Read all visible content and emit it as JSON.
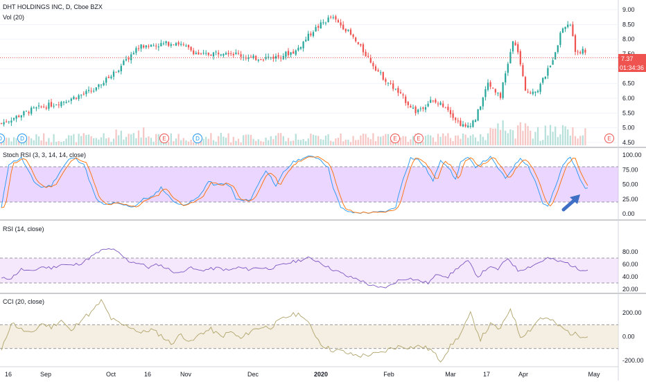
{
  "header": {
    "title": "DHT HOLDINGS INC, D, Cboe BZX",
    "volume_label": "Vol (20)"
  },
  "price_badge": {
    "value": "7.37",
    "countdown": "01:34:36"
  },
  "colors": {
    "up": "#26a69a",
    "down": "#ef5350",
    "vol_up": "#b7e0da",
    "vol_down": "#f6c6c4",
    "stoch_k": "#2196f3",
    "stoch_d": "#ff6d00",
    "stoch_band": "#e1bee7",
    "rsi_line": "#7e57c2",
    "rsi_band": "#f3e5f5",
    "cci_line": "#b0a36a",
    "cci_band": "#f3ede1",
    "arrow": "#3f6fc4",
    "event_dividend": "#2196f3",
    "event_earnings": "#ef5350"
  },
  "events": [
    {
      "type": "dividend",
      "label": "D"
    },
    {
      "type": "earnings",
      "label": "E"
    },
    {
      "type": "dividend",
      "label": "D"
    },
    {
      "type": "earnings",
      "label": "E"
    },
    {
      "type": "earnings",
      "label": "E"
    },
    {
      "type": "dividend",
      "label": "D"
    },
    {
      "type": "earnings",
      "label": "E"
    }
  ],
  "annotation": {
    "icon": "arrow-up-right-icon"
  },
  "x_axis": {
    "labels": [
      "16",
      "Sep",
      "Oct",
      "16",
      "Nov",
      "Dec",
      "2020",
      "Feb",
      "Mar",
      "17",
      "Apr",
      "May"
    ],
    "bold": [
      false,
      false,
      false,
      false,
      false,
      false,
      true,
      false,
      false,
      false,
      false,
      false
    ]
  },
  "chart_data": [
    {
      "type": "candlestick",
      "title": "DHT HOLDINGS INC, D, Cboe BZX",
      "price_axis_ticks": [
        "9.00",
        "8.50",
        "8.00",
        "7.50",
        "7.00",
        "6.50",
        "6.00",
        "5.50",
        "5.00",
        "4.50"
      ],
      "ylim": [
        4.4,
        9.2
      ],
      "last_price": 7.37,
      "close_anchors": [
        [
          0,
          5.15
        ],
        [
          12,
          5.6
        ],
        [
          25,
          5.9
        ],
        [
          38,
          6.3
        ],
        [
          48,
          7.1
        ],
        [
          55,
          7.75
        ],
        [
          62,
          7.8
        ],
        [
          70,
          7.9
        ],
        [
          80,
          7.45
        ],
        [
          90,
          7.6
        ],
        [
          100,
          7.35
        ],
        [
          110,
          7.4
        ],
        [
          118,
          7.6
        ],
        [
          125,
          8.3
        ],
        [
          132,
          8.75
        ],
        [
          138,
          8.35
        ],
        [
          145,
          7.6
        ],
        [
          152,
          6.8
        ],
        [
          160,
          6.1
        ],
        [
          166,
          5.55
        ],
        [
          172,
          5.9
        ],
        [
          178,
          5.75
        ],
        [
          183,
          5.2
        ],
        [
          186,
          5.0
        ],
        [
          190,
          5.3
        ],
        [
          195,
          6.5
        ],
        [
          200,
          6.1
        ],
        [
          205,
          7.9
        ],
        [
          207,
          7.6
        ],
        [
          210,
          6.2
        ],
        [
          215,
          6.3
        ],
        [
          220,
          7.1
        ],
        [
          225,
          8.4
        ],
        [
          228,
          8.5
        ],
        [
          230,
          7.6
        ]
      ],
      "volume_label": "Vol (20)"
    },
    {
      "type": "line",
      "title": "Stoch RSI (3, 3, 14, 14, close)",
      "ticks": [
        "100.00",
        "75.00",
        "50.00",
        "25.00",
        "0.00"
      ],
      "ylim": [
        -5,
        108
      ],
      "band": [
        20,
        80
      ],
      "series": [
        {
          "name": "",
          "values_anchors": [
            [
              0,
              10
            ],
            [
              3,
              85
            ],
            [
              8,
              95
            ],
            [
              13,
              55
            ],
            [
              16,
              45
            ],
            [
              20,
              48
            ],
            [
              24,
              75
            ],
            [
              27,
              92
            ],
            [
              29,
              95
            ],
            [
              33,
              85
            ],
            [
              35,
              60
            ],
            [
              38,
              25
            ],
            [
              41,
              15
            ],
            [
              45,
              18
            ],
            [
              49,
              15
            ],
            [
              53,
              12
            ],
            [
              57,
              25
            ],
            [
              61,
              30
            ],
            [
              64,
              45
            ],
            [
              67,
              30
            ],
            [
              71,
              15
            ],
            [
              75,
              18
            ],
            [
              79,
              28
            ],
            [
              83,
              55
            ],
            [
              86,
              48
            ],
            [
              89,
              52
            ],
            [
              92,
              45
            ],
            [
              94,
              25
            ],
            [
              97,
              22
            ],
            [
              100,
              25
            ],
            [
              104,
              60
            ],
            [
              106,
              72
            ],
            [
              108,
              65
            ],
            [
              110,
              45
            ],
            [
              113,
              70
            ],
            [
              117,
              88
            ],
            [
              121,
              95
            ],
            [
              125,
              98
            ],
            [
              128,
              92
            ],
            [
              131,
              78
            ],
            [
              133,
              45
            ],
            [
              136,
              10
            ],
            [
              140,
              2
            ],
            [
              145,
              2
            ],
            [
              150,
              2
            ],
            [
              155,
              5
            ],
            [
              158,
              12
            ],
            [
              161,
              60
            ],
            [
              164,
              95
            ],
            [
              167,
              92
            ],
            [
              170,
              78
            ],
            [
              173,
              55
            ],
            [
              176,
              92
            ],
            [
              179,
              80
            ],
            [
              182,
              58
            ],
            [
              184,
              88
            ],
            [
              187,
              95
            ],
            [
              190,
              80
            ],
            [
              193,
              88
            ],
            [
              196,
              96
            ],
            [
              199,
              78
            ],
            [
              202,
              60
            ],
            [
              205,
              78
            ],
            [
              208,
              95
            ],
            [
              211,
              82
            ],
            [
              214,
              55
            ],
            [
              217,
              18
            ],
            [
              219,
              12
            ],
            [
              222,
              45
            ],
            [
              225,
              82
            ],
            [
              228,
              98
            ],
            [
              230,
              78
            ],
            [
              232,
              60
            ],
            [
              234,
              45
            ]
          ]
        }
      ],
      "annotation": "blue arrow pointing up-right"
    },
    {
      "type": "line",
      "title": "RSI (14, close)",
      "ticks": [
        "80.00",
        "60.00",
        "40.00",
        "20.00"
      ],
      "ylim": [
        17,
        88
      ],
      "band": [
        30,
        70
      ],
      "series": [
        {
          "name": "",
          "values_anchors": [
            [
              0,
              37
            ],
            [
              4,
              38
            ],
            [
              8,
              52
            ],
            [
              12,
              48
            ],
            [
              16,
              56
            ],
            [
              20,
              54
            ],
            [
              24,
              60
            ],
            [
              28,
              58
            ],
            [
              32,
              62
            ],
            [
              36,
              72
            ],
            [
              40,
              82
            ],
            [
              44,
              85
            ],
            [
              47,
              78
            ],
            [
              51,
              65
            ],
            [
              55,
              62
            ],
            [
              59,
              55
            ],
            [
              63,
              60
            ],
            [
              67,
              52
            ],
            [
              71,
              45
            ],
            [
              75,
              55
            ],
            [
              79,
              50
            ],
            [
              83,
              52
            ],
            [
              87,
              54
            ],
            [
              91,
              50
            ],
            [
              95,
              55
            ],
            [
              99,
              52
            ],
            [
              103,
              55
            ],
            [
              107,
              53
            ],
            [
              111,
              57
            ],
            [
              115,
              62
            ],
            [
              119,
              66
            ],
            [
              123,
              70
            ],
            [
              127,
              65
            ],
            [
              131,
              55
            ],
            [
              135,
              48
            ],
            [
              139,
              40
            ],
            [
              143,
              36
            ],
            [
              147,
              28
            ],
            [
              151,
              22
            ],
            [
              155,
              24
            ],
            [
              159,
              34
            ],
            [
              163,
              38
            ],
            [
              167,
              34
            ],
            [
              171,
              30
            ],
            [
              175,
              45
            ],
            [
              179,
              40
            ],
            [
              183,
              55
            ],
            [
              187,
              65
            ],
            [
              191,
              40
            ],
            [
              195,
              55
            ],
            [
              199,
              52
            ],
            [
              203,
              70
            ],
            [
              207,
              50
            ],
            [
              211,
              55
            ],
            [
              215,
              62
            ],
            [
              219,
              70
            ],
            [
              223,
              65
            ],
            [
              227,
              62
            ],
            [
              231,
              52
            ]
          ]
        }
      ]
    },
    {
      "type": "line",
      "title": "CCI (20, close)",
      "ticks": [
        "200.00",
        "0.00",
        "-200.00"
      ],
      "ylim": [
        -240,
        330
      ],
      "band": [
        -100,
        100
      ],
      "series": [
        {
          "name": "",
          "values_anchors": [
            [
              0,
              -120
            ],
            [
              4,
              120
            ],
            [
              8,
              60
            ],
            [
              12,
              20
            ],
            [
              16,
              110
            ],
            [
              20,
              80
            ],
            [
              24,
              140
            ],
            [
              28,
              40
            ],
            [
              32,
              150
            ],
            [
              36,
              200
            ],
            [
              40,
              300
            ],
            [
              44,
              150
            ],
            [
              48,
              100
            ],
            [
              52,
              80
            ],
            [
              56,
              30
            ],
            [
              60,
              60
            ],
            [
              64,
              10
            ],
            [
              68,
              -60
            ],
            [
              72,
              20
            ],
            [
              76,
              -50
            ],
            [
              80,
              30
            ],
            [
              84,
              60
            ],
            [
              88,
              0
            ],
            [
              92,
              40
            ],
            [
              96,
              -20
            ],
            [
              100,
              50
            ],
            [
              104,
              80
            ],
            [
              108,
              80
            ],
            [
              112,
              140
            ],
            [
              116,
              180
            ],
            [
              120,
              190
            ],
            [
              124,
              80
            ],
            [
              128,
              -60
            ],
            [
              132,
              -110
            ],
            [
              136,
              -120
            ],
            [
              140,
              -150
            ],
            [
              144,
              -160
            ],
            [
              148,
              -150
            ],
            [
              152,
              -140
            ],
            [
              156,
              -100
            ],
            [
              160,
              -80
            ],
            [
              164,
              -90
            ],
            [
              168,
              -80
            ],
            [
              172,
              -110
            ],
            [
              176,
              -200
            ],
            [
              180,
              -80
            ],
            [
              184,
              20
            ],
            [
              188,
              190
            ],
            [
              192,
              -20
            ],
            [
              196,
              100
            ],
            [
              200,
              60
            ],
            [
              204,
              240
            ],
            [
              208,
              0
            ],
            [
              212,
              60
            ],
            [
              216,
              160
            ],
            [
              220,
              140
            ],
            [
              224,
              80
            ],
            [
              228,
              30
            ],
            [
              232,
              10
            ]
          ]
        }
      ]
    }
  ]
}
